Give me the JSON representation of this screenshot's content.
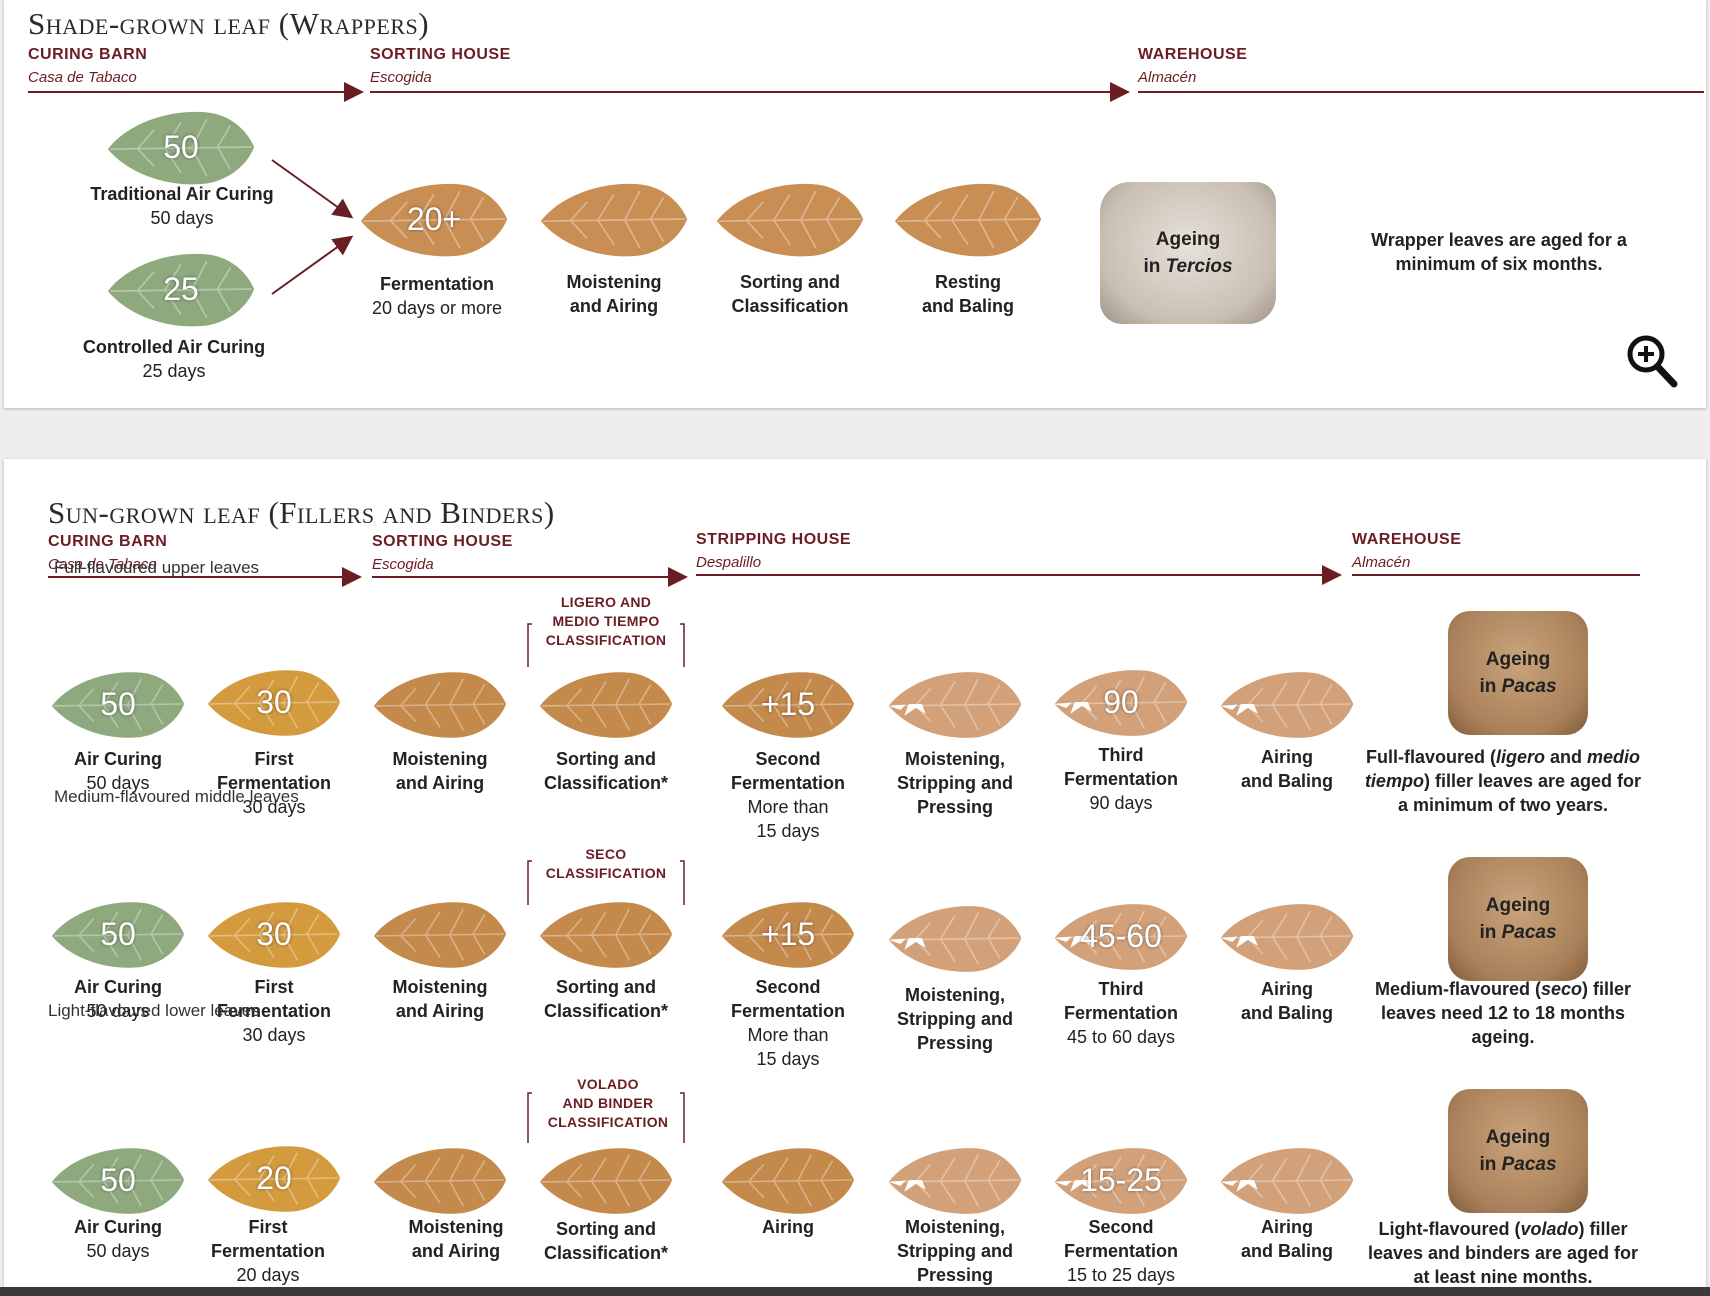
{
  "colors": {
    "accent": "#6b1d24",
    "leaf_green": "#8ea97e",
    "leaf_ochre": "#d49a3e",
    "leaf_tan": "#c98e54",
    "leaf_light": "#d2a17a"
  },
  "wrappers": {
    "title": "Shade-grown leaf (Wrappers)",
    "stages": [
      {
        "name": "CURING BARN",
        "sub": "Casa de Tabaco"
      },
      {
        "name": "SORTING HOUSE",
        "sub": "Escogida"
      },
      {
        "name": "WAREHOUSE",
        "sub": "Almacén"
      }
    ],
    "curing": [
      {
        "number": "50",
        "label": "Traditional Air Curing",
        "days": "50 days"
      },
      {
        "number": "25",
        "label": "Controlled Air Curing",
        "days": "25 days"
      }
    ],
    "steps": [
      {
        "number": "20+",
        "label": "Fermentation",
        "days": "20 days or more"
      },
      {
        "number": "",
        "label_line1": "Moistening",
        "label_line2": "and Airing"
      },
      {
        "number": "",
        "label_line1": "Sorting and",
        "label_line2": "Classification"
      },
      {
        "number": "",
        "label_line1": "Resting",
        "label_line2": "and Baling"
      }
    ],
    "bale": {
      "line1": "Ageing",
      "line2_prefix": "in ",
      "line2_italic": "Tercios"
    },
    "note_line1": "Wrapper leaves are aged for a",
    "note_line2": "minimum of six months.",
    "zoom_icon": "zoom-in-icon"
  },
  "fillers": {
    "title": "Sun-grown leaf (Fillers and Binders)",
    "stages": [
      {
        "name": "CURING BARN",
        "sub": "Casa de Tabaco"
      },
      {
        "name": "SORTING HOUSE",
        "sub": "Escogida"
      },
      {
        "name": "STRIPPING HOUSE",
        "sub": "Despalillo"
      },
      {
        "name": "WAREHOUSE",
        "sub": "Almacén"
      }
    ],
    "rows": [
      {
        "label": "Full-flavoured upper leaves",
        "classification": [
          "LIGERO AND",
          "MEDIO TIEMPO",
          "CLASSIFICATION"
        ],
        "air_curing": {
          "number": "50",
          "label": "Air Curing",
          "days": "50 days"
        },
        "first_ferm": {
          "number": "30",
          "label1": "First",
          "label2": "Fermentation",
          "days": "30 days"
        },
        "moist": {
          "label1": "Moistening",
          "label2": "and Airing"
        },
        "sorting": {
          "label1": "Sorting and",
          "label2": "Classification*"
        },
        "second": {
          "number": "+15",
          "label1": "Second",
          "label2": "Fermentation",
          "days1": "More than",
          "days2": "15 days"
        },
        "strip": {
          "label1": "Moistening,",
          "label2": "Stripping and",
          "label3": "Pressing"
        },
        "third": {
          "number": "90",
          "label1": "Third",
          "label2": "Fermentation",
          "days": "90 days"
        },
        "baling": {
          "label1": "Airing",
          "label2": "and Baling"
        },
        "bale": {
          "line1": "Ageing",
          "line2_prefix": "in ",
          "line2_italic": "Pacas"
        },
        "note": {
          "p1": "Full-flavoured (",
          "i1": "ligero",
          "p2": " and ",
          "i2": "medio",
          "line2_italic": "tiempo",
          "line2_rest": ") filler leaves are aged for",
          "line3": "a minimum of two years."
        }
      },
      {
        "label": "Medium-flavoured middle leaves",
        "classification": [
          "SECO",
          "CLASSIFICATION"
        ],
        "air_curing": {
          "number": "50",
          "label": "Air Curing",
          "days": "50 days"
        },
        "first_ferm": {
          "number": "30",
          "label1": "First",
          "label2": "Fermentation",
          "days": "30 days"
        },
        "moist": {
          "label1": "Moistening",
          "label2": "and Airing"
        },
        "sorting": {
          "label1": "Sorting and",
          "label2": "Classification*"
        },
        "second": {
          "number": "+15",
          "label1": "Second",
          "label2": "Fermentation",
          "days1": "More than",
          "days2": "15 days"
        },
        "strip": {
          "label1": "Moistening,",
          "label2": "Stripping and",
          "label3": "Pressing"
        },
        "third": {
          "number": "45-60",
          "label1": "Third",
          "label2": "Fermentation",
          "days": "45 to 60 days"
        },
        "baling": {
          "label1": "Airing",
          "label2": "and Baling"
        },
        "bale": {
          "line1": "Ageing",
          "line2_prefix": "in ",
          "line2_italic": "Pacas"
        },
        "note": {
          "p1": "Medium-flavoured (",
          "i1": "seco",
          "p2": ") filler",
          "line2": "leaves need 12 to 18 months",
          "line3": "ageing."
        }
      },
      {
        "label": "Light-flavoured lower leaves",
        "classification": [
          "VOLADO",
          "AND BINDER",
          "CLASSIFICATION"
        ],
        "air_curing": {
          "number": "50",
          "label": "Air Curing",
          "days": "50 days"
        },
        "first_ferm": {
          "number": "20",
          "label1": "First",
          "label2": "Fermentation",
          "days": "20 days"
        },
        "moist": {
          "label1": "Moistening",
          "label2": "and Airing"
        },
        "sorting": {
          "label1": "Sorting and",
          "label2": "Classification*"
        },
        "airing": {
          "label1": "Airing"
        },
        "strip": {
          "label1": "Moistening,",
          "label2": "Stripping and",
          "label3": "Pressing"
        },
        "third": {
          "number": "15-25",
          "label1": "Second",
          "label2": "Fermentation",
          "days": "15 to 25 days"
        },
        "baling": {
          "label1": "Airing",
          "label2": "and Baling"
        },
        "bale": {
          "line1": "Ageing",
          "line2_prefix": "in ",
          "line2_italic": "Pacas"
        },
        "note": {
          "p1": "Light-flavoured (",
          "i1": "volado",
          "p2": ") filler",
          "line2": "leaves and binders are aged for",
          "line3": "at least nine months."
        }
      }
    ]
  }
}
